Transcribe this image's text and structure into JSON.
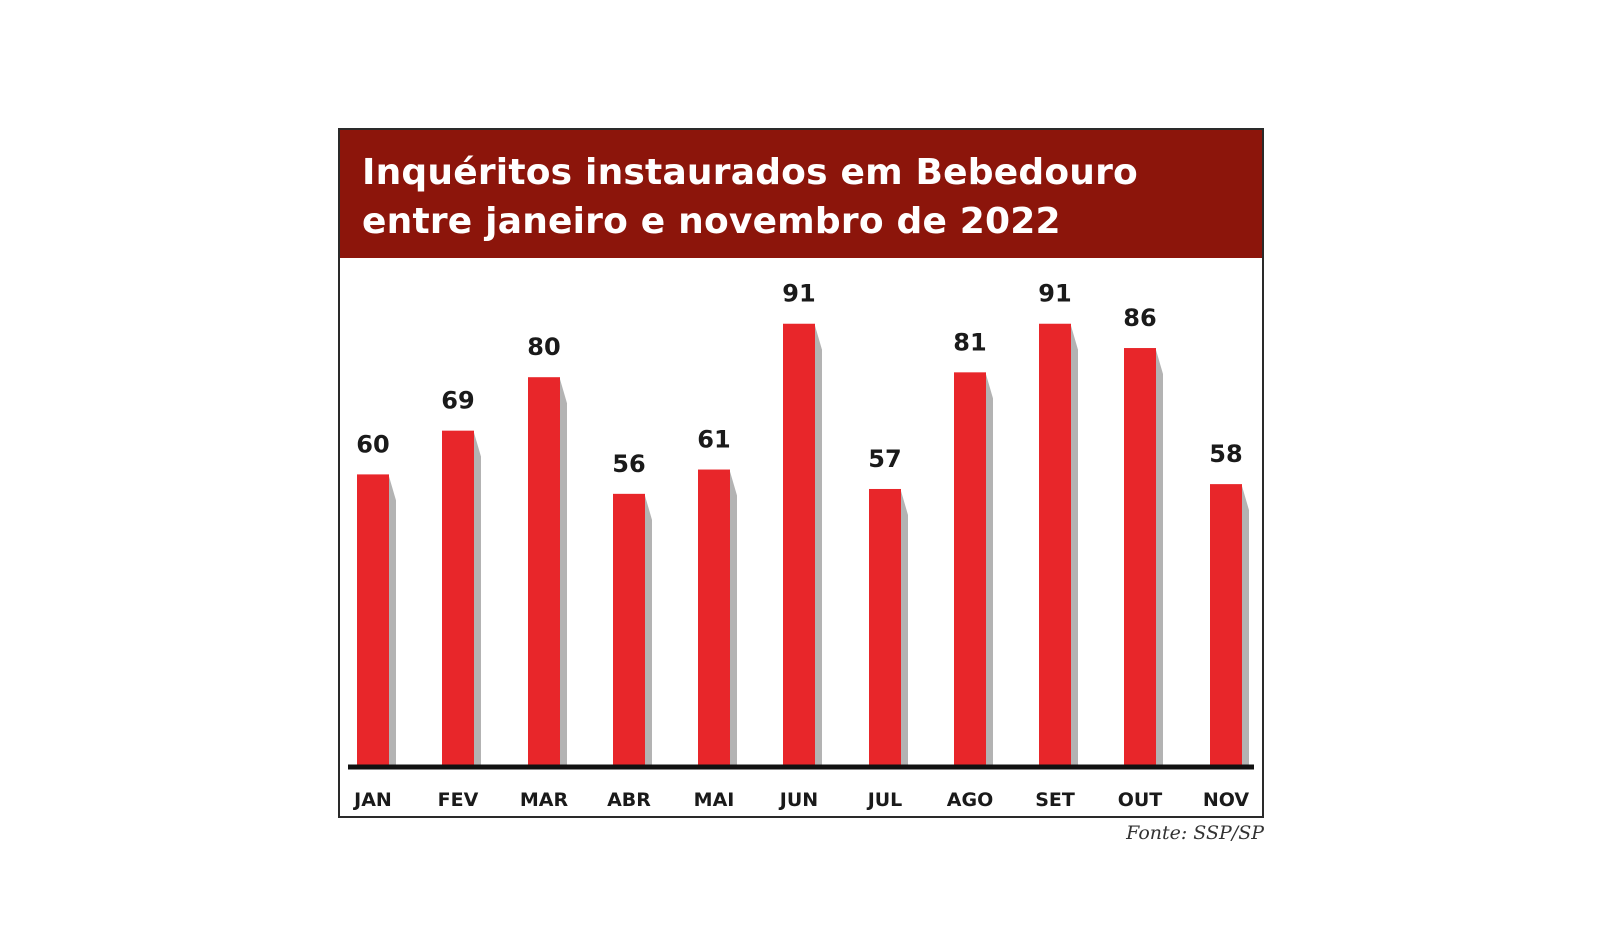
{
  "chart_data": {
    "type": "bar",
    "title_lines": [
      "Inquéritos instaurados em Bebedouro",
      "entre janeiro e novembro de 2022"
    ],
    "categories": [
      "JAN",
      "FEV",
      "MAR",
      "ABR",
      "MAI",
      "JUN",
      "JUL",
      "AGO",
      "SET",
      "OUT",
      "NOV"
    ],
    "values": [
      60,
      69,
      80,
      56,
      61,
      91,
      57,
      81,
      91,
      86,
      58
    ],
    "xlabel": "",
    "ylabel": "",
    "ylim": [
      0,
      100
    ],
    "grid": false,
    "legend": "none",
    "colors": {
      "bar": "#e8262a",
      "bar_shadow": "#b3b3b3",
      "title_band": "#8c150b",
      "title_text": "#ffffff",
      "baseline": "#111111",
      "labels": "#1a1a1a"
    }
  },
  "source": "Fonte: SSP/SP"
}
